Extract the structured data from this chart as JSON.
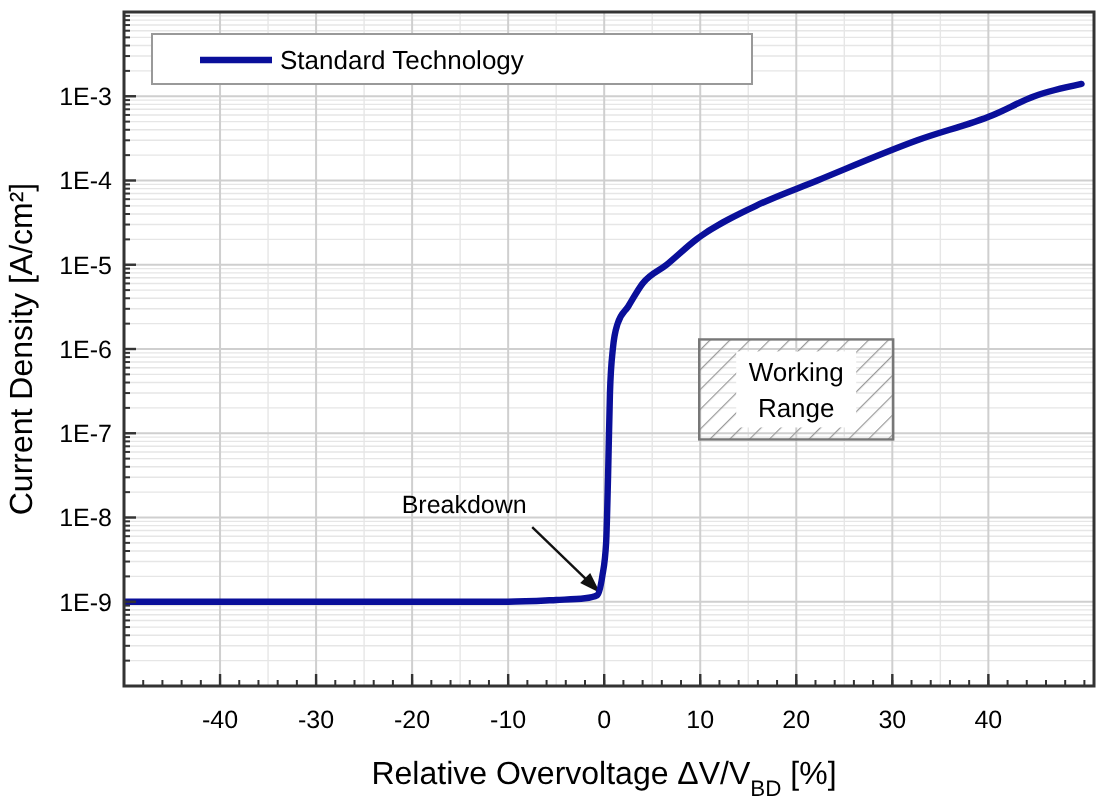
{
  "chart_data": {
    "type": "line",
    "xlabel": "Relative Overvoltage ΔV/V$_{BD}$ [%]",
    "ylabel": "Current Density [A/cm²]",
    "x": [
      -50,
      -40,
      -30,
      -20,
      -10,
      -5,
      -2,
      -0.7,
      -0.2,
      0.2,
      0.4,
      0.6,
      0.9,
      1.4,
      2.5,
      4,
      6.5,
      9.6,
      15.8,
      22.2,
      32.6,
      40.5,
      44.8,
      49.7
    ],
    "series": [
      {
        "name": "Standard Technology",
        "color": "#0a0f9a",
        "values": [
          1e-09,
          1e-09,
          1e-09,
          1e-09,
          1e-09,
          1.05e-09,
          1.1e-09,
          1.2e-09,
          2e-09,
          5e-09,
          3e-08,
          3e-07,
          1e-06,
          2e-06,
          3.2e-06,
          6e-06,
          1e-05,
          2e-05,
          5e-05,
          0.0001,
          0.0003,
          0.0006,
          0.001,
          0.0014
        ]
      }
    ],
    "xlim": [
      -50,
      51
    ],
    "xticks": [
      -40,
      -30,
      -20,
      -10,
      0,
      10,
      20,
      30,
      40
    ],
    "ylim": [
      1e-10,
      0.01
    ],
    "yticks": [
      {
        "value": 0.001,
        "label": "1E-3"
      },
      {
        "value": 0.0001,
        "label": "1E-4"
      },
      {
        "value": 1e-05,
        "label": "1E-5"
      },
      {
        "value": 1e-06,
        "label": "1E-6"
      },
      {
        "value": 1e-07,
        "label": "1E-7"
      },
      {
        "value": 1e-08,
        "label": "1E-8"
      },
      {
        "value": 1e-09,
        "label": "1E-9"
      }
    ],
    "log": true,
    "grid": true,
    "legend": "top left",
    "line_style": "solid",
    "marker": "none",
    "annotations": [
      {
        "text": "Breakdown",
        "x": 0,
        "y": 1.2e-09
      },
      "Working Range"
    ]
  }
}
